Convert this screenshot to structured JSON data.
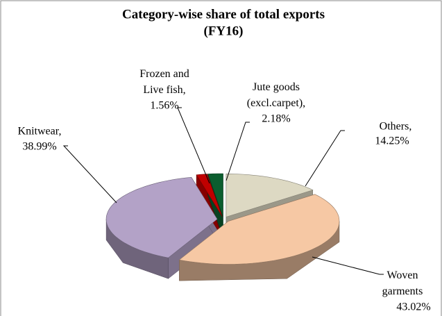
{
  "chart_data": {
    "type": "pie",
    "title": "Category-wise share of total exports",
    "subtitle": "(FY16)",
    "categories": [
      "Others,",
      "Woven garments",
      "Knitwear,",
      "Frozen and Live fish,",
      "Jute goods (excl.carpet),"
    ],
    "values": [
      14.25,
      43.02,
      38.99,
      1.56,
      2.18
    ],
    "value_labels": [
      "14.25%",
      "43.02%",
      "38.99%",
      "1.56%",
      "2.18%"
    ],
    "colors": [
      "#ddd9c3",
      "#f6c8a4",
      "#b3a2c7",
      "#c00000",
      "#0b5e2f"
    ]
  }
}
